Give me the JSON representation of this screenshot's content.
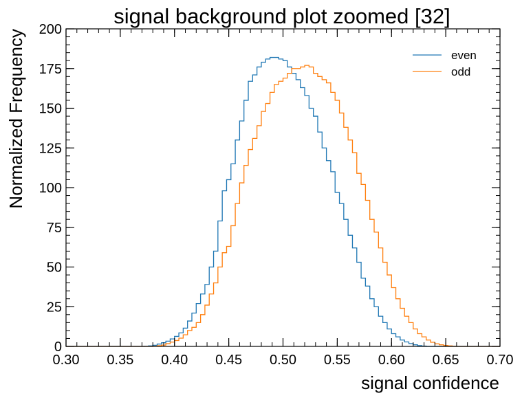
{
  "chart_data": {
    "type": "histogram-step",
    "title": "signal background plot zoomed [32]",
    "xlabel": "signal confidence",
    "ylabel": "Normalized Frequency",
    "xlim": [
      0.3,
      0.7
    ],
    "ylim": [
      0,
      200
    ],
    "xticks": [
      "0.30",
      "0.35",
      "0.40",
      "0.45",
      "0.50",
      "0.55",
      "0.60",
      "0.65",
      "0.70"
    ],
    "yticks": [
      "0",
      "25",
      "50",
      "75",
      "100",
      "125",
      "150",
      "175",
      "200"
    ],
    "legend_position": "top-right",
    "bin_edges_start": 0.3,
    "bin_width": 0.004,
    "series": [
      {
        "name": "even",
        "color": "#1f77b4",
        "values": [
          0,
          0,
          0,
          0,
          0,
          0,
          0,
          0,
          0,
          0,
          0,
          0,
          0,
          0,
          0,
          0,
          0,
          0,
          0.1,
          0.3,
          0.7,
          1.5,
          2.3,
          3.3,
          4.7,
          6.3,
          8.5,
          11.5,
          16,
          21,
          27,
          33,
          39,
          50,
          60,
          79,
          98,
          105,
          115,
          130,
          142,
          155,
          167,
          171,
          176,
          179,
          181,
          182,
          182,
          181,
          180,
          176,
          172,
          168,
          163,
          158,
          150,
          145,
          135,
          125,
          117,
          110,
          97,
          90,
          80,
          70,
          62,
          53,
          43,
          38,
          30,
          25,
          19,
          15,
          11,
          8,
          6,
          4,
          2.8,
          1.8,
          1,
          0.5,
          0.2,
          0,
          0,
          0,
          0,
          0,
          0,
          0,
          0,
          0,
          0,
          0,
          0,
          0,
          0,
          0,
          0,
          0
        ]
      },
      {
        "name": "odd",
        "color": "#ff7f0e",
        "values": [
          0,
          0,
          0,
          0,
          0,
          0,
          0,
          0,
          0,
          0,
          0,
          0,
          0,
          0,
          0,
          0,
          0,
          0,
          0,
          0,
          0.1,
          0.4,
          0.8,
          1.7,
          2.7,
          3.7,
          5.2,
          7.3,
          10,
          12,
          15,
          20,
          26,
          33,
          40,
          50,
          59,
          63,
          76,
          90,
          103,
          114,
          124,
          131,
          139,
          148,
          153,
          160,
          165,
          167,
          169,
          172,
          175,
          175,
          176,
          177,
          176,
          172,
          170,
          168,
          166,
          160,
          155,
          147,
          138,
          130,
          122,
          109,
          102,
          92,
          80,
          72,
          62,
          53,
          45,
          37,
          30,
          24,
          19,
          15,
          11,
          8,
          6,
          4,
          2.6,
          1.6,
          1,
          0.6,
          0.3,
          0.1,
          0,
          0,
          0,
          0,
          0,
          0,
          0,
          0,
          0,
          0
        ]
      }
    ]
  }
}
